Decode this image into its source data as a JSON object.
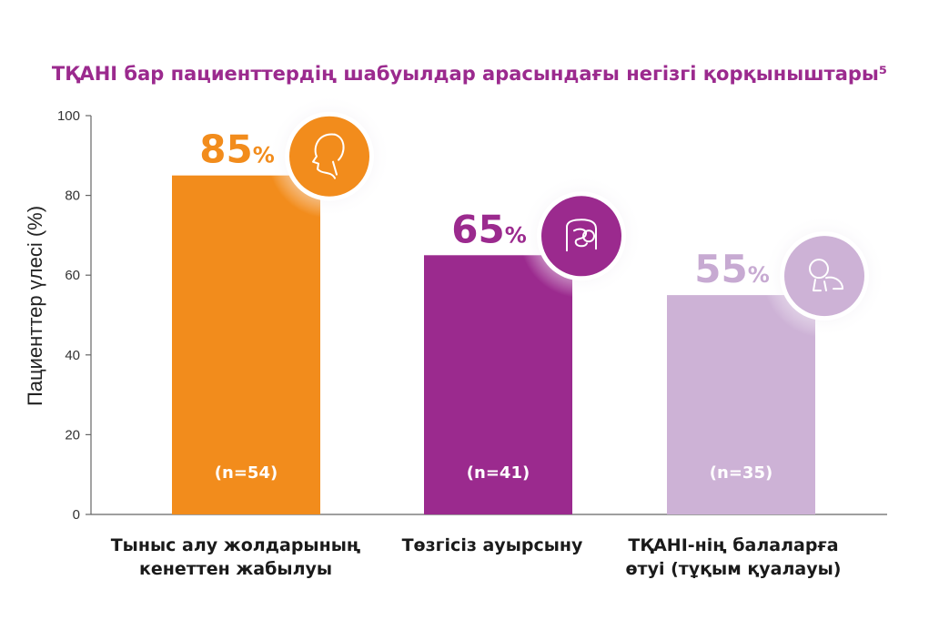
{
  "chart_data": {
    "type": "bar",
    "title": "ТҚАНІ бар пациенттердің шабуылдар арасындағы негізгі қорқыныштары⁵",
    "ylabel": "Пациенттер үлесі (%)",
    "xlabel": "",
    "ylim": [
      0,
      100
    ],
    "yticks": [
      0,
      20,
      40,
      60,
      80,
      100
    ],
    "grid": false,
    "categories": [
      [
        "Тыныс алу жолдарының",
        "кенеттен жабылуы"
      ],
      [
        "Төзгісіз ауырсыну"
      ],
      [
        "ТҚАНІ-нің балаларға",
        "өтуі (тұқым қуалауы)"
      ]
    ],
    "values": [
      85,
      65,
      55
    ],
    "value_labels": [
      "85",
      "65",
      "55"
    ],
    "value_suffix": "%",
    "n_labels": [
      "(n=54)",
      "(n=41)",
      "(n=35)"
    ],
    "colors": [
      "#f28c1c",
      "#9b2a8e",
      "#cdb2d6"
    ],
    "label_colors": [
      "#f28c1c",
      "#9b2a8e",
      "#c7aad2"
    ],
    "title_color": "#9b2a8e",
    "icons": [
      "face-throat-icon",
      "intestine-icon",
      "crawling-baby-icon"
    ]
  }
}
